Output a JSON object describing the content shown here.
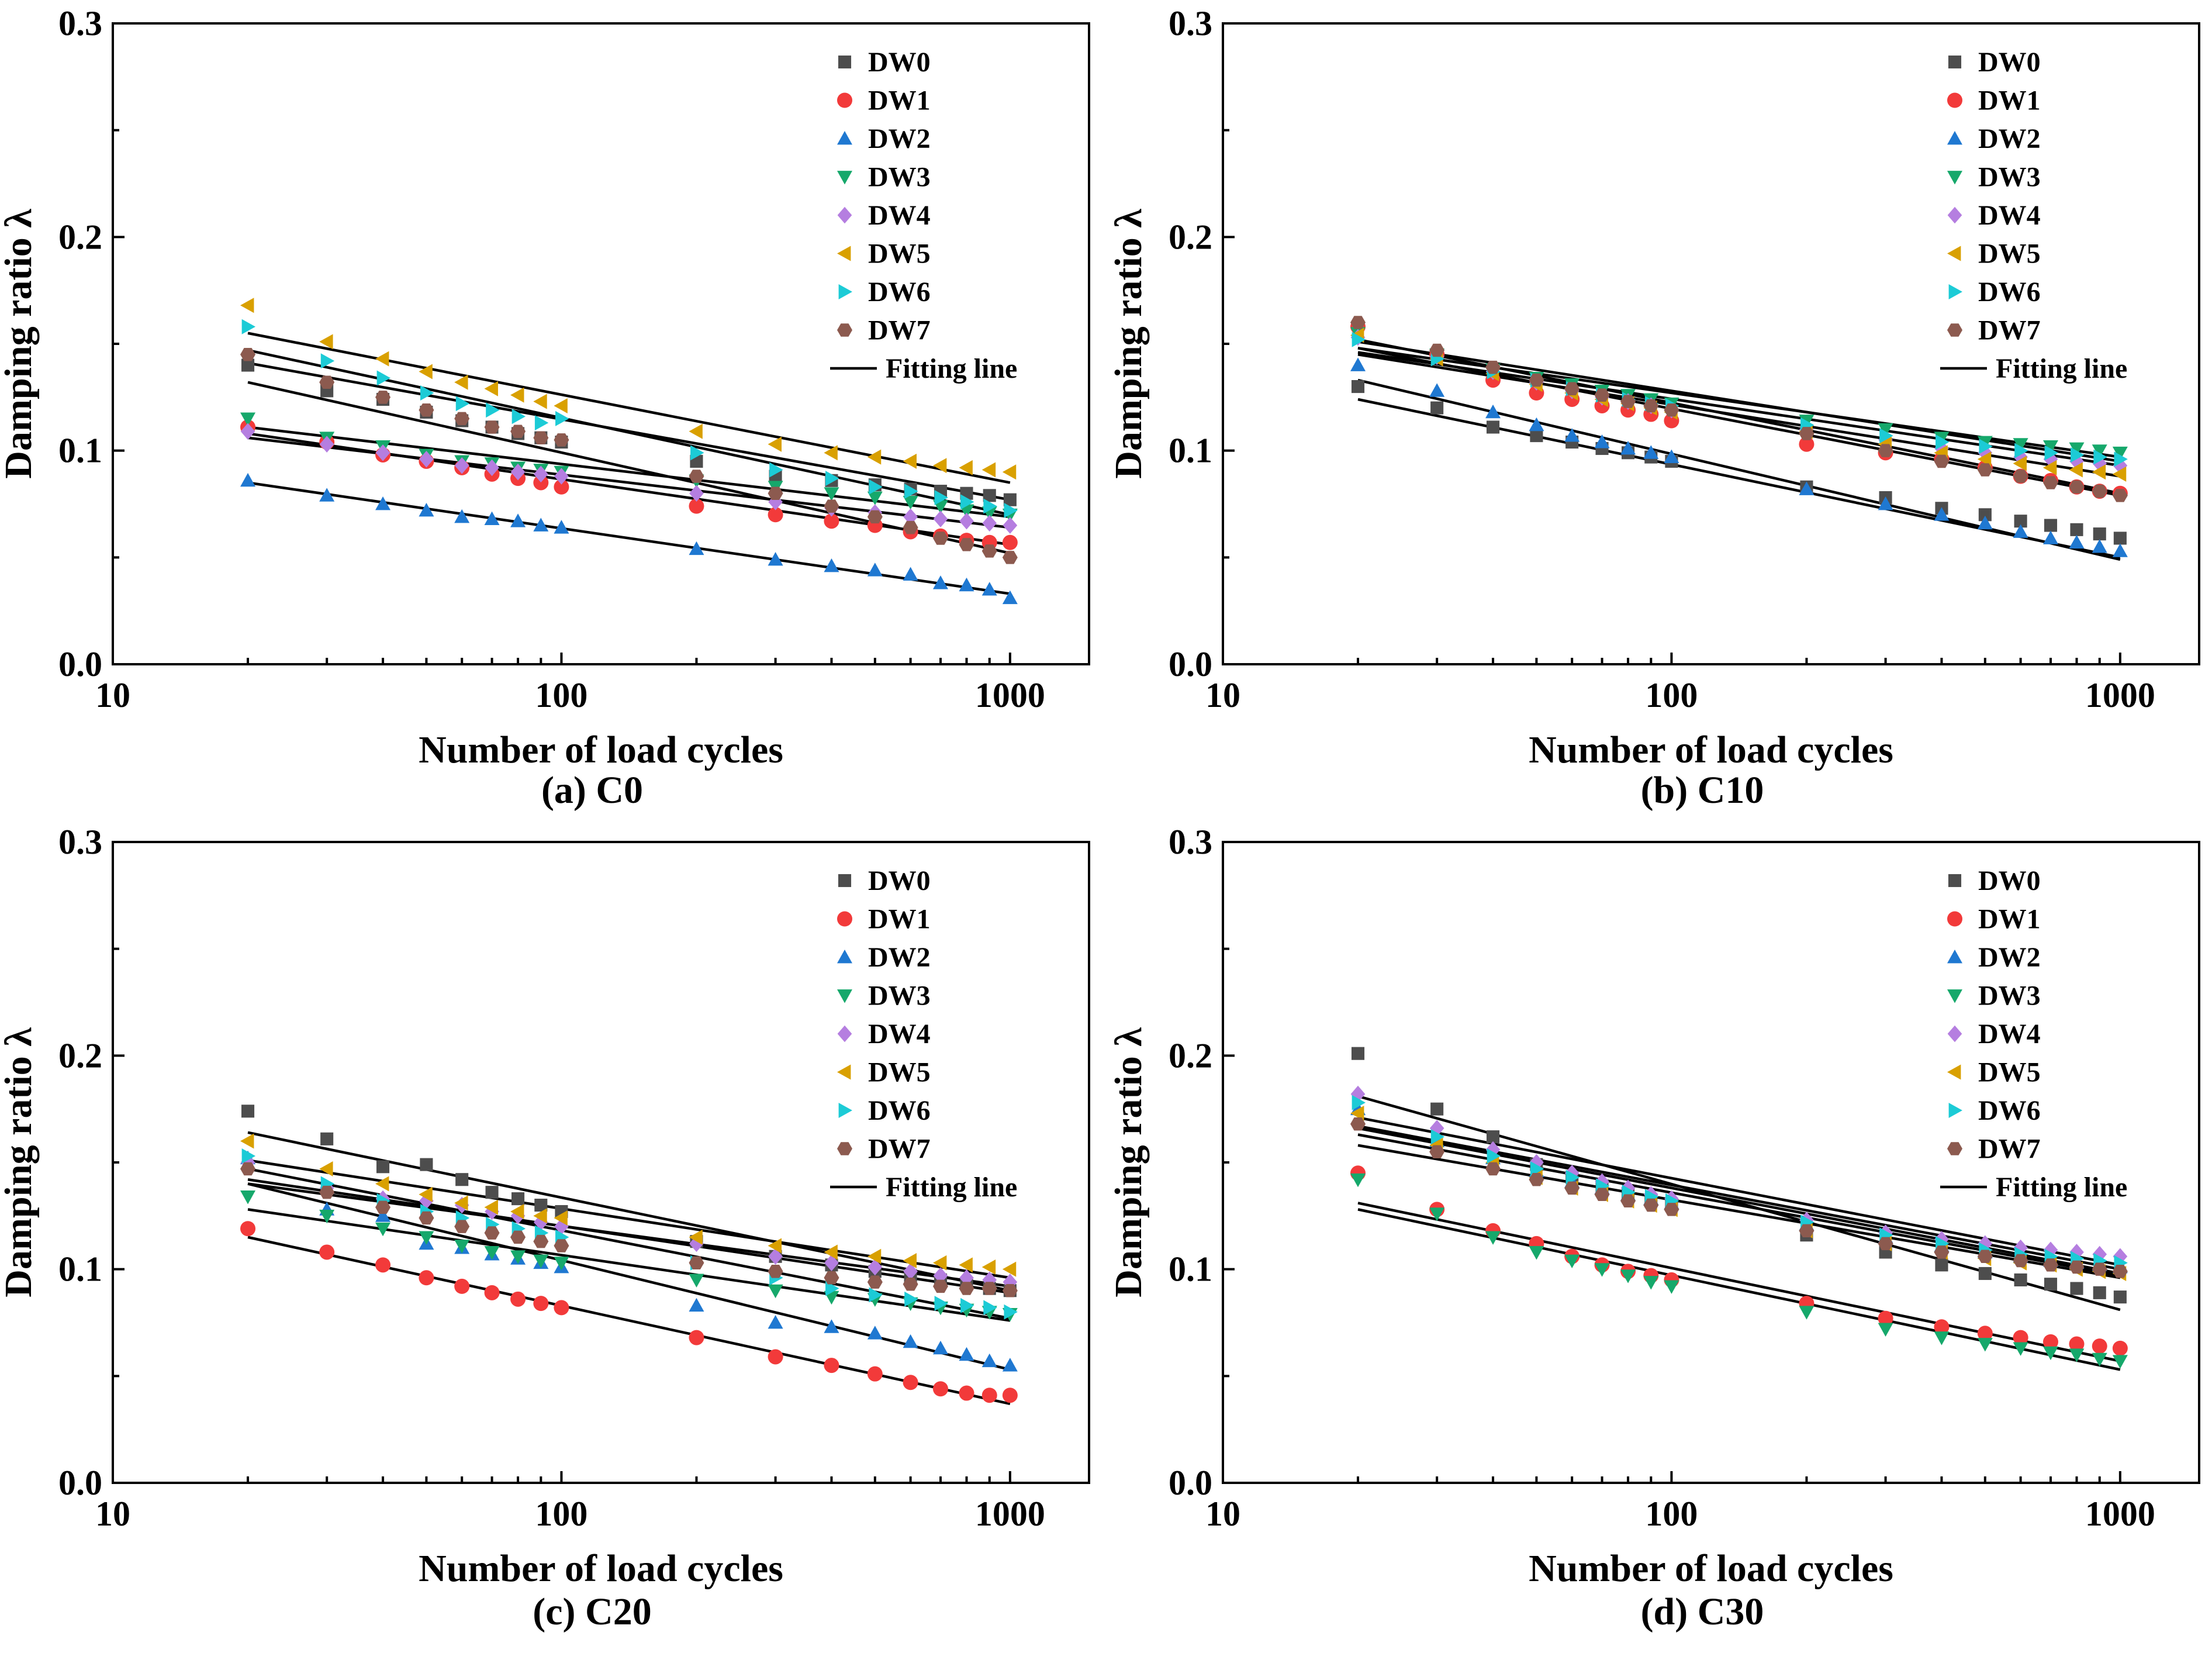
{
  "chart_data": [
    {
      "type": "scatter",
      "title": "",
      "caption": "(a) C0",
      "xlabel": "Number of load cycles",
      "ylabel": "Damping ratio λ",
      "xscale": "log",
      "xlim": [
        10,
        1500
      ],
      "ylim": [
        0.0,
        0.3
      ],
      "xticks": [
        10,
        100,
        1000
      ],
      "xtick_labels": [
        "10",
        "100",
        "1000"
      ],
      "yticks": [
        0.0,
        0.1,
        0.2,
        0.3
      ],
      "ytick_labels": [
        "0.0",
        "0.1",
        "0.2",
        "0.3"
      ],
      "legend_position": "top-right",
      "fit_label": "Fitting line",
      "x": [
        20,
        30,
        40,
        50,
        60,
        70,
        80,
        90,
        100,
        200,
        300,
        400,
        500,
        600,
        700,
        800,
        900,
        1000
      ],
      "series": [
        {
          "name": "DW0",
          "values": [
            0.14,
            0.128,
            0.124,
            0.118,
            0.114,
            0.111,
            0.108,
            0.106,
            0.104,
            0.095,
            0.088,
            0.086,
            0.084,
            0.082,
            0.081,
            0.08,
            0.079,
            0.077
          ],
          "fit": [
            0.141,
            0.077
          ]
        },
        {
          "name": "DW1",
          "values": [
            0.111,
            0.104,
            0.098,
            0.095,
            0.092,
            0.089,
            0.087,
            0.085,
            0.083,
            0.074,
            0.07,
            0.067,
            0.065,
            0.062,
            0.06,
            0.058,
            0.057,
            0.057
          ],
          "fit": [
            0.108,
            0.056
          ]
        },
        {
          "name": "DW2",
          "values": [
            0.086,
            0.079,
            0.075,
            0.072,
            0.069,
            0.068,
            0.067,
            0.065,
            0.064,
            0.054,
            0.049,
            0.046,
            0.044,
            0.042,
            0.038,
            0.037,
            0.035,
            0.031
          ],
          "fit": [
            0.085,
            0.033
          ]
        },
        {
          "name": "DW3",
          "values": [
            0.115,
            0.106,
            0.102,
            0.098,
            0.095,
            0.094,
            0.092,
            0.091,
            0.09,
            0.086,
            0.083,
            0.08,
            0.078,
            0.076,
            0.074,
            0.072,
            0.071,
            0.07
          ],
          "fit": [
            0.111,
            0.069
          ]
        },
        {
          "name": "DW4",
          "values": [
            0.109,
            0.103,
            0.099,
            0.096,
            0.093,
            0.092,
            0.09,
            0.089,
            0.088,
            0.08,
            0.076,
            0.073,
            0.071,
            0.069,
            0.068,
            0.067,
            0.066,
            0.065
          ],
          "fit": [
            0.106,
            0.064
          ]
        },
        {
          "name": "DW5",
          "values": [
            0.168,
            0.151,
            0.143,
            0.137,
            0.132,
            0.129,
            0.126,
            0.123,
            0.121,
            0.109,
            0.103,
            0.099,
            0.097,
            0.095,
            0.093,
            0.092,
            0.091,
            0.09
          ],
          "fit": [
            0.155,
            0.085
          ]
        },
        {
          "name": "DW6",
          "values": [
            0.158,
            0.142,
            0.134,
            0.127,
            0.122,
            0.119,
            0.116,
            0.113,
            0.115,
            0.099,
            0.091,
            0.087,
            0.083,
            0.081,
            0.078,
            0.076,
            0.074,
            0.072
          ],
          "fit": [
            0.147,
            0.07
          ]
        },
        {
          "name": "DW7",
          "values": [
            0.145,
            0.132,
            0.125,
            0.119,
            0.115,
            0.111,
            0.109,
            0.106,
            0.105,
            0.088,
            0.08,
            0.074,
            0.069,
            0.064,
            0.059,
            0.056,
            0.053,
            0.05
          ],
          "fit": [
            0.132,
            0.052
          ]
        }
      ]
    },
    {
      "type": "scatter",
      "title": "",
      "caption": "(b) C10",
      "xlabel": "Number of load cycles",
      "ylabel": "Damping ratio λ",
      "xscale": "log",
      "xlim": [
        10,
        1500
      ],
      "ylim": [
        0.0,
        0.3
      ],
      "xticks": [
        10,
        100,
        1000
      ],
      "xtick_labels": [
        "10",
        "100",
        "1000"
      ],
      "yticks": [
        0.0,
        0.1,
        0.2,
        0.3
      ],
      "ytick_labels": [
        "0.0",
        "0.1",
        "0.2",
        "0.3"
      ],
      "legend_position": "top-right",
      "fit_label": "Fitting line",
      "x": [
        20,
        30,
        40,
        50,
        60,
        70,
        80,
        90,
        100,
        200,
        300,
        400,
        500,
        600,
        700,
        800,
        900,
        1000
      ],
      "series": [
        {
          "name": "DW0",
          "values": [
            0.13,
            0.12,
            0.111,
            0.107,
            0.104,
            0.101,
            0.099,
            0.097,
            0.095,
            0.083,
            0.078,
            0.073,
            0.07,
            0.067,
            0.065,
            0.063,
            0.061,
            0.059
          ],
          "fit": [
            0.124,
            0.05
          ]
        },
        {
          "name": "DW1",
          "values": [
            0.158,
            0.145,
            0.133,
            0.127,
            0.124,
            0.121,
            0.119,
            0.117,
            0.114,
            0.103,
            0.099,
            0.096,
            0.092,
            0.088,
            0.086,
            0.083,
            0.081,
            0.08
          ],
          "fit": [
            0.148,
            0.079
          ]
        },
        {
          "name": "DW2",
          "values": [
            0.14,
            0.128,
            0.118,
            0.112,
            0.107,
            0.104,
            0.101,
            0.099,
            0.097,
            0.082,
            0.075,
            0.07,
            0.066,
            0.062,
            0.059,
            0.057,
            0.055,
            0.053
          ],
          "fit": [
            0.133,
            0.049
          ]
        },
        {
          "name": "DW3",
          "values": [
            0.155,
            0.145,
            0.138,
            0.134,
            0.131,
            0.128,
            0.126,
            0.124,
            0.122,
            0.114,
            0.11,
            0.106,
            0.104,
            0.103,
            0.102,
            0.101,
            0.1,
            0.099
          ],
          "fit": [
            0.148,
            0.097
          ]
        },
        {
          "name": "DW4",
          "values": [
            0.153,
            0.144,
            0.137,
            0.132,
            0.128,
            0.125,
            0.123,
            0.121,
            0.119,
            0.11,
            0.105,
            0.101,
            0.099,
            0.097,
            0.096,
            0.095,
            0.094,
            0.093
          ],
          "fit": [
            0.146,
            0.093
          ]
        },
        {
          "name": "DW5",
          "values": [
            0.154,
            0.143,
            0.136,
            0.131,
            0.127,
            0.124,
            0.122,
            0.12,
            0.118,
            0.109,
            0.103,
            0.099,
            0.096,
            0.094,
            0.092,
            0.091,
            0.09,
            0.089
          ],
          "fit": [
            0.145,
            0.088
          ]
        },
        {
          "name": "DW6",
          "values": [
            0.152,
            0.143,
            0.137,
            0.133,
            0.129,
            0.126,
            0.124,
            0.122,
            0.121,
            0.112,
            0.107,
            0.104,
            0.102,
            0.1,
            0.099,
            0.098,
            0.097,
            0.096
          ],
          "fit": [
            0.151,
            0.095
          ]
        },
        {
          "name": "DW7",
          "values": [
            0.16,
            0.147,
            0.139,
            0.133,
            0.129,
            0.126,
            0.123,
            0.121,
            0.119,
            0.108,
            0.1,
            0.095,
            0.091,
            0.088,
            0.085,
            0.083,
            0.081,
            0.079
          ],
          "fit": [
            0.152,
            0.08
          ]
        }
      ]
    },
    {
      "type": "scatter",
      "title": "",
      "caption": "(c) C20",
      "xlabel": "Number of load cycles",
      "ylabel": "Damping ratio λ",
      "xscale": "log",
      "xlim": [
        10,
        1500
      ],
      "ylim": [
        0.0,
        0.3
      ],
      "xticks": [
        10,
        100,
        1000
      ],
      "xtick_labels": [
        "10",
        "100",
        "1000"
      ],
      "yticks": [
        0.0,
        0.1,
        0.2,
        0.3
      ],
      "ytick_labels": [
        "0.0",
        "0.1",
        "0.2",
        "0.3"
      ],
      "legend_position": "top-right",
      "fit_label": "Fitting line",
      "x": [
        20,
        30,
        40,
        50,
        60,
        70,
        80,
        90,
        100,
        200,
        300,
        400,
        500,
        600,
        700,
        800,
        900,
        1000
      ],
      "series": [
        {
          "name": "DW0",
          "values": [
            0.174,
            0.161,
            0.148,
            0.149,
            0.142,
            0.136,
            0.133,
            0.13,
            0.127,
            0.113,
            0.106,
            0.102,
            0.099,
            0.097,
            0.095,
            0.093,
            0.091,
            0.09
          ],
          "fit": [
            0.164,
            0.09
          ]
        },
        {
          "name": "DW1",
          "values": [
            0.119,
            0.108,
            0.102,
            0.096,
            0.092,
            0.089,
            0.086,
            0.084,
            0.082,
            0.068,
            0.059,
            0.055,
            0.051,
            0.047,
            0.044,
            0.042,
            0.041,
            0.041
          ],
          "fit": [
            0.115,
            0.037
          ]
        },
        {
          "name": "DW2",
          "values": [
            0.152,
            0.128,
            0.125,
            0.112,
            0.11,
            0.107,
            0.105,
            0.103,
            0.101,
            0.083,
            0.075,
            0.073,
            0.07,
            0.066,
            0.063,
            0.06,
            0.057,
            0.055
          ],
          "fit": [
            0.14,
            0.053
          ]
        },
        {
          "name": "DW3",
          "values": [
            0.134,
            0.125,
            0.119,
            0.115,
            0.111,
            0.108,
            0.106,
            0.104,
            0.103,
            0.095,
            0.09,
            0.087,
            0.086,
            0.084,
            0.082,
            0.081,
            0.08,
            0.079
          ],
          "fit": [
            0.128,
            0.076
          ]
        },
        {
          "name": "DW4",
          "values": [
            0.15,
            0.138,
            0.133,
            0.132,
            0.13,
            0.127,
            0.125,
            0.122,
            0.12,
            0.112,
            0.106,
            0.103,
            0.101,
            0.099,
            0.097,
            0.096,
            0.095,
            0.094
          ],
          "fit": [
            0.14,
            0.092
          ]
        },
        {
          "name": "DW5",
          "values": [
            0.16,
            0.147,
            0.14,
            0.135,
            0.131,
            0.129,
            0.127,
            0.125,
            0.124,
            0.115,
            0.111,
            0.108,
            0.106,
            0.104,
            0.103,
            0.102,
            0.101,
            0.1
          ],
          "fit": [
            0.151,
            0.096
          ]
        },
        {
          "name": "DW6",
          "values": [
            0.153,
            0.14,
            0.132,
            0.127,
            0.124,
            0.121,
            0.119,
            0.117,
            0.115,
            0.103,
            0.096,
            0.091,
            0.088,
            0.086,
            0.084,
            0.083,
            0.082,
            0.08
          ],
          "fit": [
            0.147,
            0.077
          ]
        },
        {
          "name": "DW7",
          "values": [
            0.147,
            0.136,
            0.129,
            0.124,
            0.12,
            0.117,
            0.115,
            0.113,
            0.111,
            0.103,
            0.099,
            0.096,
            0.094,
            0.093,
            0.092,
            0.091,
            0.091,
            0.09
          ],
          "fit": [
            0.142,
            0.089
          ]
        }
      ]
    },
    {
      "type": "scatter",
      "title": "",
      "caption": "(d) C30",
      "xlabel": "Number of load cycles",
      "ylabel": "Damping ratio λ",
      "xscale": "log",
      "xlim": [
        10,
        1500
      ],
      "ylim": [
        0.0,
        0.3
      ],
      "xticks": [
        10,
        100,
        1000
      ],
      "xtick_labels": [
        "10",
        "100",
        "1000"
      ],
      "yticks": [
        0.0,
        0.1,
        0.2,
        0.3
      ],
      "ytick_labels": [
        "0.0",
        "0.1",
        "0.2",
        "0.3"
      ],
      "legend_position": "top-right",
      "fit_label": "Fitting line",
      "x": [
        20,
        30,
        40,
        50,
        60,
        70,
        80,
        90,
        100,
        200,
        300,
        400,
        500,
        600,
        700,
        800,
        900,
        1000
      ],
      "series": [
        {
          "name": "DW0",
          "values": [
            0.201,
            0.175,
            0.162,
            0.149,
            0.143,
            0.139,
            0.135,
            0.132,
            0.13,
            0.116,
            0.108,
            0.102,
            0.098,
            0.095,
            0.093,
            0.091,
            0.089,
            0.087
          ],
          "fit": [
            0.181,
            0.081
          ]
        },
        {
          "name": "DW1",
          "values": [
            0.145,
            0.128,
            0.118,
            0.112,
            0.106,
            0.102,
            0.099,
            0.097,
            0.095,
            0.084,
            0.077,
            0.073,
            0.07,
            0.068,
            0.066,
            0.065,
            0.064,
            0.063
          ],
          "fit": [
            0.131,
            0.057
          ]
        },
        {
          "name": "DW2",
          "values": [
            0.175,
            0.16,
            0.152,
            0.146,
            0.141,
            0.138,
            0.135,
            0.133,
            0.131,
            0.121,
            0.115,
            0.111,
            0.108,
            0.106,
            0.104,
            0.103,
            0.102,
            0.101
          ],
          "fit": [
            0.166,
            0.098
          ]
        },
        {
          "name": "DW3",
          "values": [
            0.142,
            0.126,
            0.115,
            0.108,
            0.104,
            0.1,
            0.097,
            0.094,
            0.092,
            0.08,
            0.072,
            0.068,
            0.065,
            0.063,
            0.061,
            0.06,
            0.058,
            0.057
          ],
          "fit": [
            0.128,
            0.053
          ]
        },
        {
          "name": "DW4",
          "values": [
            0.182,
            0.166,
            0.156,
            0.15,
            0.145,
            0.141,
            0.138,
            0.135,
            0.133,
            0.123,
            0.117,
            0.114,
            0.112,
            0.11,
            0.109,
            0.108,
            0.107,
            0.106
          ],
          "fit": [
            0.171,
            0.102
          ]
        },
        {
          "name": "DW5",
          "values": [
            0.173,
            0.158,
            0.15,
            0.143,
            0.138,
            0.135,
            0.132,
            0.13,
            0.128,
            0.118,
            0.112,
            0.108,
            0.105,
            0.103,
            0.102,
            0.1,
            0.099,
            0.098
          ],
          "fit": [
            0.163,
            0.097
          ]
        },
        {
          "name": "DW6",
          "values": [
            0.178,
            0.162,
            0.153,
            0.147,
            0.143,
            0.139,
            0.136,
            0.134,
            0.132,
            0.122,
            0.116,
            0.112,
            0.109,
            0.107,
            0.106,
            0.105,
            0.104,
            0.103
          ],
          "fit": [
            0.167,
            0.1
          ]
        },
        {
          "name": "DW7",
          "values": [
            0.168,
            0.155,
            0.147,
            0.142,
            0.138,
            0.135,
            0.132,
            0.13,
            0.128,
            0.118,
            0.112,
            0.108,
            0.106,
            0.104,
            0.102,
            0.101,
            0.1,
            0.099
          ],
          "fit": [
            0.158,
            0.096
          ]
        }
      ]
    }
  ],
  "style": {
    "series_colors": [
      "#4d4d4d",
      "#f23a3a",
      "#1f78d1",
      "#16a86b",
      "#b57ee0",
      "#d9a000",
      "#1ccbd6",
      "#8c5a4f"
    ],
    "series_markers": [
      "square",
      "circle",
      "triangle-up",
      "triangle-down",
      "diamond",
      "triangle-left",
      "triangle-right",
      "hexagon"
    ],
    "fit_color": "#000000"
  }
}
